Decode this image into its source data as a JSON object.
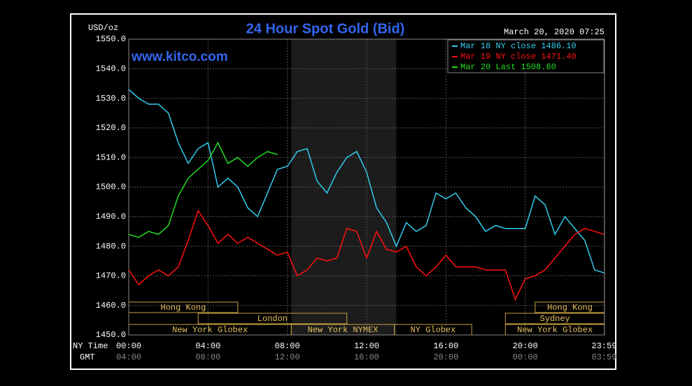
{
  "chart_data": {
    "type": "line",
    "title": "24 Hour Spot Gold (Bid)",
    "subtitle": "March 20, 2020 07:25",
    "y_label": "USD/oz",
    "watermark": "www.kitco.com",
    "x_row_label": "NY Time",
    "x2_row_label": "GMT",
    "x": [
      0,
      0.5,
      1,
      1.5,
      2,
      2.5,
      3,
      3.5,
      4,
      4.5,
      5,
      5.5,
      6,
      6.5,
      7,
      7.5,
      8,
      8.5,
      9,
      9.5,
      10,
      10.5,
      11,
      11.5,
      12,
      12.5,
      13,
      13.5,
      14,
      14.5,
      15,
      15.5,
      16,
      16.5,
      17,
      17.5,
      18,
      18.5,
      19,
      19.5,
      20,
      20.5,
      21,
      21.5,
      22,
      22.5,
      23,
      23.5,
      23.98
    ],
    "xlim": [
      0,
      24
    ],
    "xticks": [
      {
        "value": 0,
        "label": "00:00"
      },
      {
        "value": 4,
        "label": "04:00"
      },
      {
        "value": 8,
        "label": "08:00"
      },
      {
        "value": 12,
        "label": "12:00"
      },
      {
        "value": 16,
        "label": "16:00"
      },
      {
        "value": 20,
        "label": "20:00"
      },
      {
        "value": 23.98,
        "label": "23:59"
      }
    ],
    "x2ticks": [
      {
        "value": 0,
        "label": "04:00"
      },
      {
        "value": 4,
        "label": "08:00"
      },
      {
        "value": 8,
        "label": "12:00"
      },
      {
        "value": 12,
        "label": "16:00"
      },
      {
        "value": 16,
        "label": "20:00"
      },
      {
        "value": 20,
        "label": "00:00"
      },
      {
        "value": 23.98,
        "label": "03:59"
      }
    ],
    "ylim": [
      1450,
      1550
    ],
    "yticks": [
      {
        "value": 1450,
        "label": "1450.0"
      },
      {
        "value": 1460,
        "label": "1460.0"
      },
      {
        "value": 1470,
        "label": "1470.0"
      },
      {
        "value": 1480,
        "label": "1480.0"
      },
      {
        "value": 1490,
        "label": "1490.0"
      },
      {
        "value": 1500,
        "label": "1500.0"
      },
      {
        "value": 1510,
        "label": "1510.0"
      },
      {
        "value": 1520,
        "label": "1520.0"
      },
      {
        "value": 1530,
        "label": "1530.0"
      },
      {
        "value": 1540,
        "label": "1540.0"
      },
      {
        "value": 1550,
        "label": "1550.0"
      }
    ],
    "grid": true,
    "legend": "top-right",
    "shaded": [
      8.2,
      13.5
    ],
    "sessions": [
      [
        {
          "label": "Hong Kong",
          "start": 0,
          "end": 5.5
        },
        {
          "label": "Hong Kong",
          "start": 20.5,
          "end": 24
        }
      ],
      [
        {
          "label": "London",
          "start": 3.5,
          "end": 11
        },
        {
          "label": "Sydney",
          "start": 19,
          "end": 24
        }
      ],
      [
        {
          "label": "New York Globex",
          "start": 0,
          "end": 8.2
        },
        {
          "label": "New York NYMEX",
          "start": 8.2,
          "end": 13.4
        },
        {
          "label": "NY Globex",
          "start": 13.4,
          "end": 17.3
        },
        {
          "label": "New York Globex",
          "start": 19,
          "end": 24
        }
      ]
    ],
    "series": [
      {
        "name": "Mar 18 NY close 1486.10",
        "color": "#33ccee",
        "values": [
          1533,
          1530,
          1528,
          1528,
          1525,
          1515,
          1508,
          1513,
          1515,
          1500,
          1503,
          1500,
          1493,
          1490,
          1498,
          1506,
          1507,
          1512,
          1513,
          1502,
          1498,
          1505,
          1510,
          1512,
          1505,
          1493,
          1488,
          1480,
          1488,
          1485,
          1487,
          1498,
          1496,
          1498,
          1493,
          1490,
          1485,
          1487,
          1486,
          1486,
          1486,
          1497,
          1494,
          1484,
          1490,
          1486,
          1482,
          1472,
          1471
        ]
      },
      {
        "name": "Mar 19 NY close 1471.40",
        "color": "#ff1111",
        "values": [
          1472,
          1467,
          1470,
          1472,
          1470,
          1473,
          1482,
          1492,
          1487,
          1481,
          1484,
          1481,
          1483,
          1481,
          1479,
          1477,
          1478,
          1470,
          1472,
          1476,
          1475,
          1476,
          1486,
          1485,
          1476,
          1485,
          1479,
          1478,
          1480,
          1473,
          1470,
          1473,
          1477,
          1473,
          1473,
          1473,
          1472,
          1472,
          1472,
          1462,
          1469,
          1470,
          1472,
          1476,
          1480,
          1484,
          1486,
          1485,
          1484
        ]
      },
      {
        "name": "Mar 20 Last 1508.60",
        "color": "#22dd22",
        "values": [
          1484,
          1483,
          1485,
          1484,
          1487,
          1497,
          1503,
          1506,
          1509,
          1515,
          1508,
          1510,
          1507,
          1510,
          1512,
          1511,
          null,
          null,
          null,
          null,
          null,
          null,
          null,
          null,
          null,
          null,
          null,
          null,
          null,
          null,
          null,
          null,
          null,
          null,
          null,
          null,
          null,
          null,
          null,
          null,
          null,
          null,
          null,
          null,
          null,
          null,
          null,
          null,
          null
        ]
      }
    ]
  }
}
